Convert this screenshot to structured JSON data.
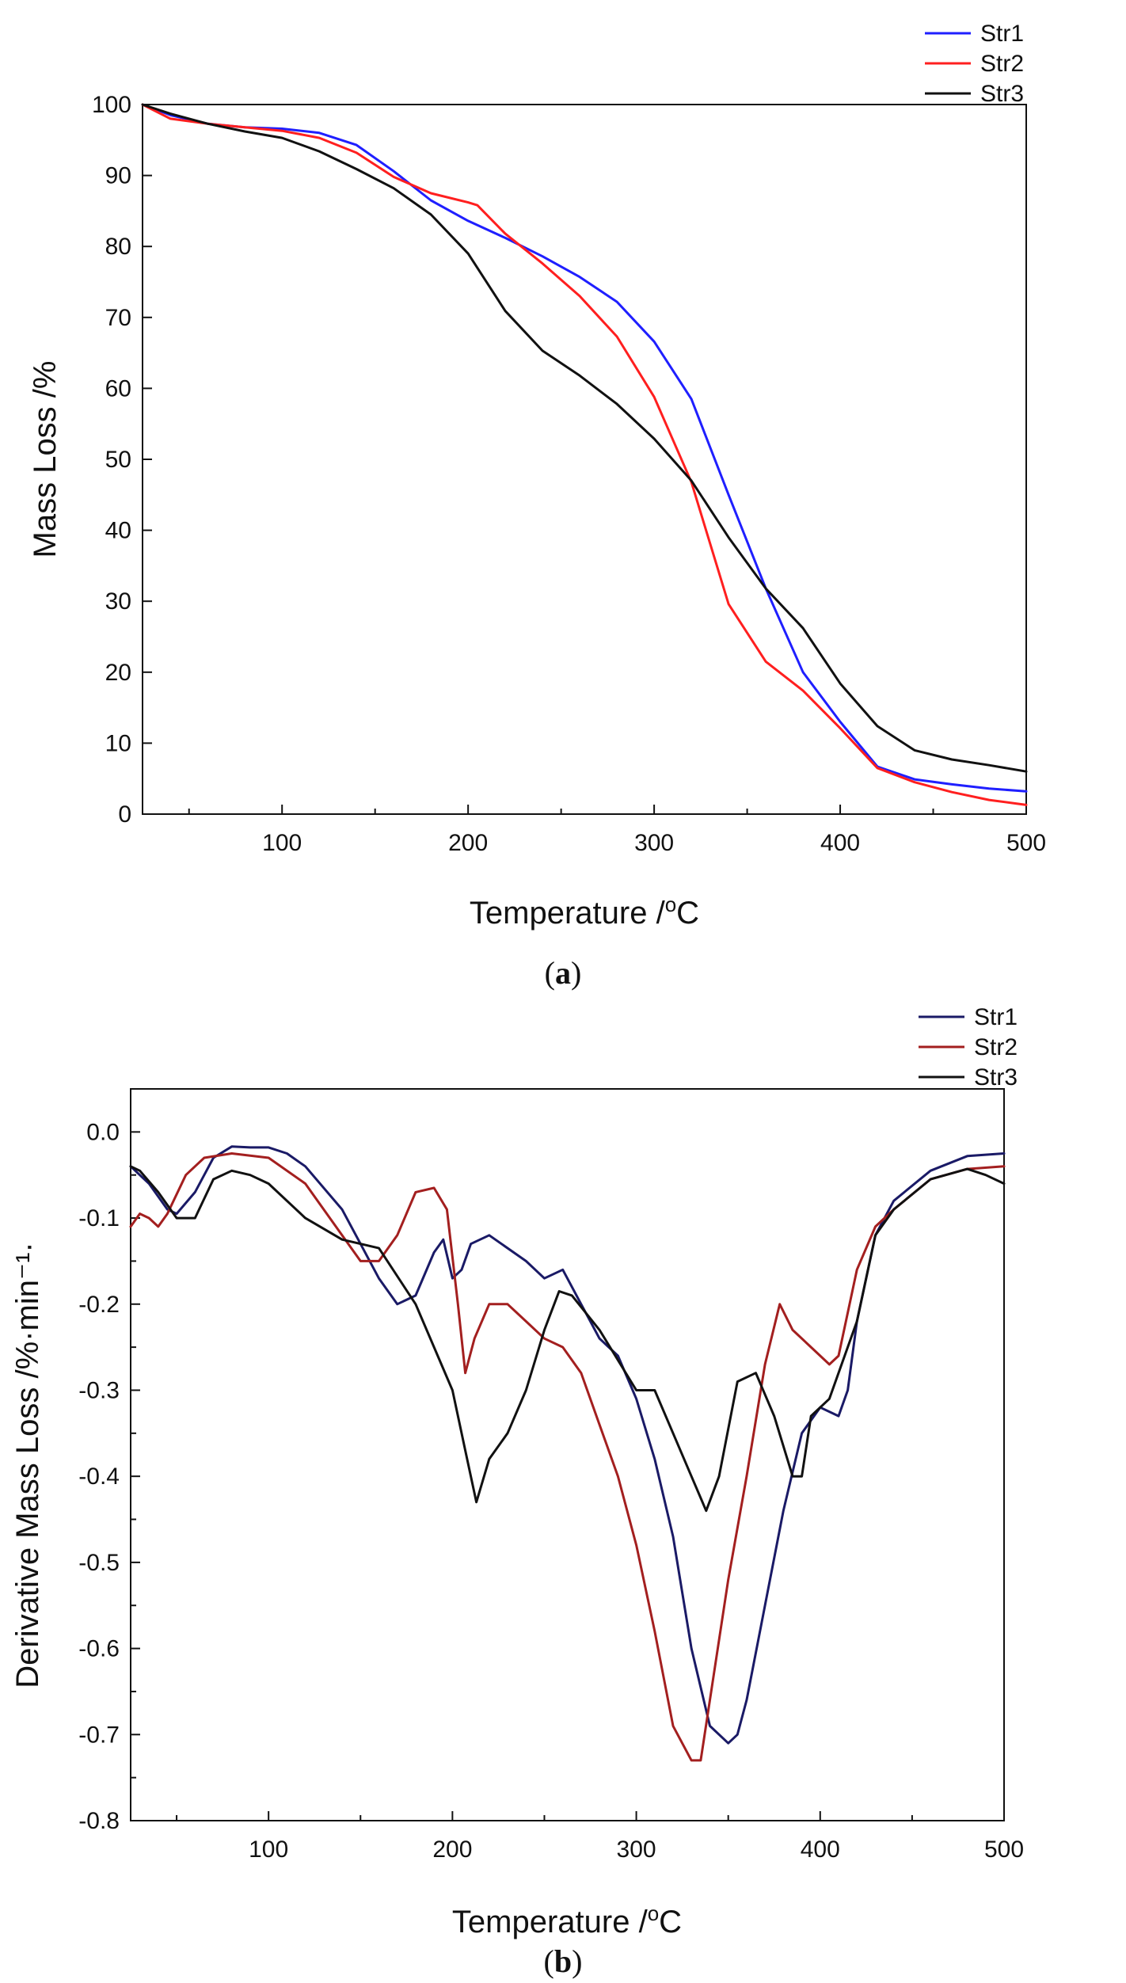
{
  "chart_data": [
    {
      "type": "line",
      "panel_label": "a",
      "title": "",
      "xlabel": "Temperature /",
      "xlabel_unit": "°C",
      "ylabel": "Mass Loss /%",
      "xlim": [
        25,
        500
      ],
      "ylim": [
        0,
        100
      ],
      "xticks": [
        100,
        200,
        300,
        400,
        500
      ],
      "yticks": [
        0,
        10,
        20,
        30,
        40,
        50,
        60,
        70,
        80,
        90,
        100
      ],
      "legend_position": "top-right",
      "series": [
        {
          "name": "Str1",
          "color": "#1f1fff",
          "points": [
            [
              25,
              100
            ],
            [
              40,
              98.5
            ],
            [
              60,
              97.3
            ],
            [
              80,
              96.8
            ],
            [
              100,
              96.6
            ],
            [
              120,
              96.0
            ],
            [
              140,
              94.3
            ],
            [
              160,
              90.6
            ],
            [
              180,
              86.5
            ],
            [
              200,
              83.6
            ],
            [
              220,
              81.2
            ],
            [
              240,
              78.6
            ],
            [
              260,
              75.7
            ],
            [
              280,
              72.2
            ],
            [
              300,
              66.6
            ],
            [
              320,
              58.5
            ],
            [
              340,
              45.0
            ],
            [
              360,
              31.8
            ],
            [
              380,
              20.0
            ],
            [
              400,
              13.0
            ],
            [
              420,
              6.7
            ],
            [
              440,
              4.9
            ],
            [
              460,
              4.2
            ],
            [
              480,
              3.6
            ],
            [
              500,
              3.2
            ]
          ]
        },
        {
          "name": "Str2",
          "color": "#ff1f1f",
          "points": [
            [
              25,
              100
            ],
            [
              40,
              98.0
            ],
            [
              60,
              97.3
            ],
            [
              80,
              96.8
            ],
            [
              100,
              96.3
            ],
            [
              120,
              95.3
            ],
            [
              140,
              93.2
            ],
            [
              160,
              89.8
            ],
            [
              180,
              87.5
            ],
            [
              200,
              86.2
            ],
            [
              205,
              85.8
            ],
            [
              220,
              81.8
            ],
            [
              240,
              77.6
            ],
            [
              260,
              73.0
            ],
            [
              280,
              67.3
            ],
            [
              300,
              58.8
            ],
            [
              320,
              46.8
            ],
            [
              340,
              29.6
            ],
            [
              360,
              21.5
            ],
            [
              380,
              17.4
            ],
            [
              400,
              12.1
            ],
            [
              420,
              6.5
            ],
            [
              440,
              4.5
            ],
            [
              460,
              3.1
            ],
            [
              480,
              2.0
            ],
            [
              500,
              1.3
            ]
          ]
        },
        {
          "name": "Str3",
          "color": "#111111",
          "points": [
            [
              25,
              100
            ],
            [
              40,
              98.7
            ],
            [
              60,
              97.3
            ],
            [
              80,
              96.2
            ],
            [
              100,
              95.3
            ],
            [
              120,
              93.4
            ],
            [
              140,
              90.9
            ],
            [
              160,
              88.2
            ],
            [
              180,
              84.5
            ],
            [
              200,
              79.0
            ],
            [
              220,
              70.9
            ],
            [
              240,
              65.3
            ],
            [
              260,
              61.8
            ],
            [
              280,
              57.8
            ],
            [
              300,
              52.9
            ],
            [
              320,
              47.0
            ],
            [
              340,
              39.0
            ],
            [
              360,
              31.8
            ],
            [
              380,
              26.2
            ],
            [
              400,
              18.4
            ],
            [
              420,
              12.4
            ],
            [
              440,
              9.0
            ],
            [
              460,
              7.7
            ],
            [
              480,
              6.9
            ],
            [
              500,
              6.0
            ]
          ]
        }
      ]
    },
    {
      "type": "line",
      "panel_label": "b",
      "title": "",
      "xlabel": "Temperature /",
      "xlabel_unit": "°C",
      "ylabel": "Derivative Mass Loss /%·min⁻¹·",
      "xlim": [
        25,
        500
      ],
      "ylim": [
        -0.8,
        0.05
      ],
      "xticks": [
        100,
        200,
        300,
        400,
        500
      ],
      "yticks": [
        -0.8,
        -0.7,
        -0.6,
        -0.5,
        -0.4,
        -0.3,
        -0.2,
        -0.1,
        0.0
      ],
      "legend_position": "top-right",
      "series": [
        {
          "name": "Str1",
          "color": "#1a1a66",
          "points": [
            [
              25,
              -0.04
            ],
            [
              35,
              -0.06
            ],
            [
              45,
              -0.09
            ],
            [
              50,
              -0.095
            ],
            [
              60,
              -0.07
            ],
            [
              70,
              -0.03
            ],
            [
              80,
              -0.017
            ],
            [
              90,
              -0.018
            ],
            [
              100,
              -0.018
            ],
            [
              110,
              -0.025
            ],
            [
              120,
              -0.04
            ],
            [
              140,
              -0.09
            ],
            [
              150,
              -0.13
            ],
            [
              160,
              -0.17
            ],
            [
              170,
              -0.2
            ],
            [
              180,
              -0.19
            ],
            [
              190,
              -0.14
            ],
            [
              195,
              -0.125
            ],
            [
              200,
              -0.17
            ],
            [
              205,
              -0.16
            ],
            [
              210,
              -0.13
            ],
            [
              220,
              -0.12
            ],
            [
              240,
              -0.15
            ],
            [
              250,
              -0.17
            ],
            [
              260,
              -0.16
            ],
            [
              270,
              -0.2
            ],
            [
              280,
              -0.24
            ],
            [
              290,
              -0.26
            ],
            [
              300,
              -0.31
            ],
            [
              310,
              -0.38
            ],
            [
              320,
              -0.47
            ],
            [
              330,
              -0.6
            ],
            [
              340,
              -0.69
            ],
            [
              350,
              -0.71
            ],
            [
              355,
              -0.7
            ],
            [
              360,
              -0.66
            ],
            [
              370,
              -0.55
            ],
            [
              380,
              -0.44
            ],
            [
              390,
              -0.35
            ],
            [
              400,
              -0.32
            ],
            [
              410,
              -0.33
            ],
            [
              415,
              -0.3
            ],
            [
              420,
              -0.22
            ],
            [
              430,
              -0.12
            ],
            [
              440,
              -0.08
            ],
            [
              460,
              -0.045
            ],
            [
              480,
              -0.028
            ],
            [
              500,
              -0.025
            ]
          ]
        },
        {
          "name": "Str2",
          "color": "#a31f1f",
          "points": [
            [
              25,
              -0.11
            ],
            [
              30,
              -0.095
            ],
            [
              35,
              -0.1
            ],
            [
              40,
              -0.11
            ],
            [
              45,
              -0.095
            ],
            [
              55,
              -0.05
            ],
            [
              65,
              -0.03
            ],
            [
              80,
              -0.025
            ],
            [
              100,
              -0.03
            ],
            [
              120,
              -0.06
            ],
            [
              140,
              -0.12
            ],
            [
              150,
              -0.15
            ],
            [
              160,
              -0.15
            ],
            [
              170,
              -0.12
            ],
            [
              180,
              -0.07
            ],
            [
              190,
              -0.065
            ],
            [
              197,
              -0.09
            ],
            [
              203,
              -0.2
            ],
            [
              207,
              -0.28
            ],
            [
              212,
              -0.24
            ],
            [
              220,
              -0.2
            ],
            [
              230,
              -0.2
            ],
            [
              240,
              -0.22
            ],
            [
              250,
              -0.24
            ],
            [
              260,
              -0.25
            ],
            [
              270,
              -0.28
            ],
            [
              280,
              -0.34
            ],
            [
              290,
              -0.4
            ],
            [
              300,
              -0.48
            ],
            [
              310,
              -0.58
            ],
            [
              320,
              -0.69
            ],
            [
              330,
              -0.73
            ],
            [
              335,
              -0.73
            ],
            [
              340,
              -0.66
            ],
            [
              350,
              -0.52
            ],
            [
              360,
              -0.4
            ],
            [
              370,
              -0.27
            ],
            [
              378,
              -0.2
            ],
            [
              385,
              -0.23
            ],
            [
              395,
              -0.25
            ],
            [
              405,
              -0.27
            ],
            [
              410,
              -0.26
            ],
            [
              420,
              -0.16
            ],
            [
              430,
              -0.11
            ],
            [
              440,
              -0.09
            ],
            [
              460,
              -0.055
            ],
            [
              480,
              -0.043
            ],
            [
              500,
              -0.04
            ]
          ]
        },
        {
          "name": "Str3",
          "color": "#111111",
          "points": [
            [
              25,
              -0.04
            ],
            [
              30,
              -0.045
            ],
            [
              40,
              -0.07
            ],
            [
              50,
              -0.1
            ],
            [
              60,
              -0.1
            ],
            [
              70,
              -0.055
            ],
            [
              80,
              -0.045
            ],
            [
              90,
              -0.05
            ],
            [
              100,
              -0.06
            ],
            [
              120,
              -0.1
            ],
            [
              140,
              -0.125
            ],
            [
              160,
              -0.135
            ],
            [
              180,
              -0.2
            ],
            [
              200,
              -0.3
            ],
            [
              207,
              -0.37
            ],
            [
              213,
              -0.43
            ],
            [
              220,
              -0.38
            ],
            [
              230,
              -0.35
            ],
            [
              240,
              -0.3
            ],
            [
              250,
              -0.23
            ],
            [
              258,
              -0.185
            ],
            [
              265,
              -0.19
            ],
            [
              280,
              -0.23
            ],
            [
              300,
              -0.3
            ],
            [
              310,
              -0.3
            ],
            [
              320,
              -0.35
            ],
            [
              330,
              -0.4
            ],
            [
              338,
              -0.44
            ],
            [
              345,
              -0.4
            ],
            [
              355,
              -0.29
            ],
            [
              365,
              -0.28
            ],
            [
              375,
              -0.33
            ],
            [
              385,
              -0.4
            ],
            [
              390,
              -0.4
            ],
            [
              395,
              -0.33
            ],
            [
              405,
              -0.31
            ],
            [
              420,
              -0.22
            ],
            [
              430,
              -0.12
            ],
            [
              440,
              -0.09
            ],
            [
              460,
              -0.055
            ],
            [
              480,
              -0.043
            ],
            [
              490,
              -0.05
            ],
            [
              500,
              -0.06
            ]
          ]
        }
      ]
    }
  ]
}
